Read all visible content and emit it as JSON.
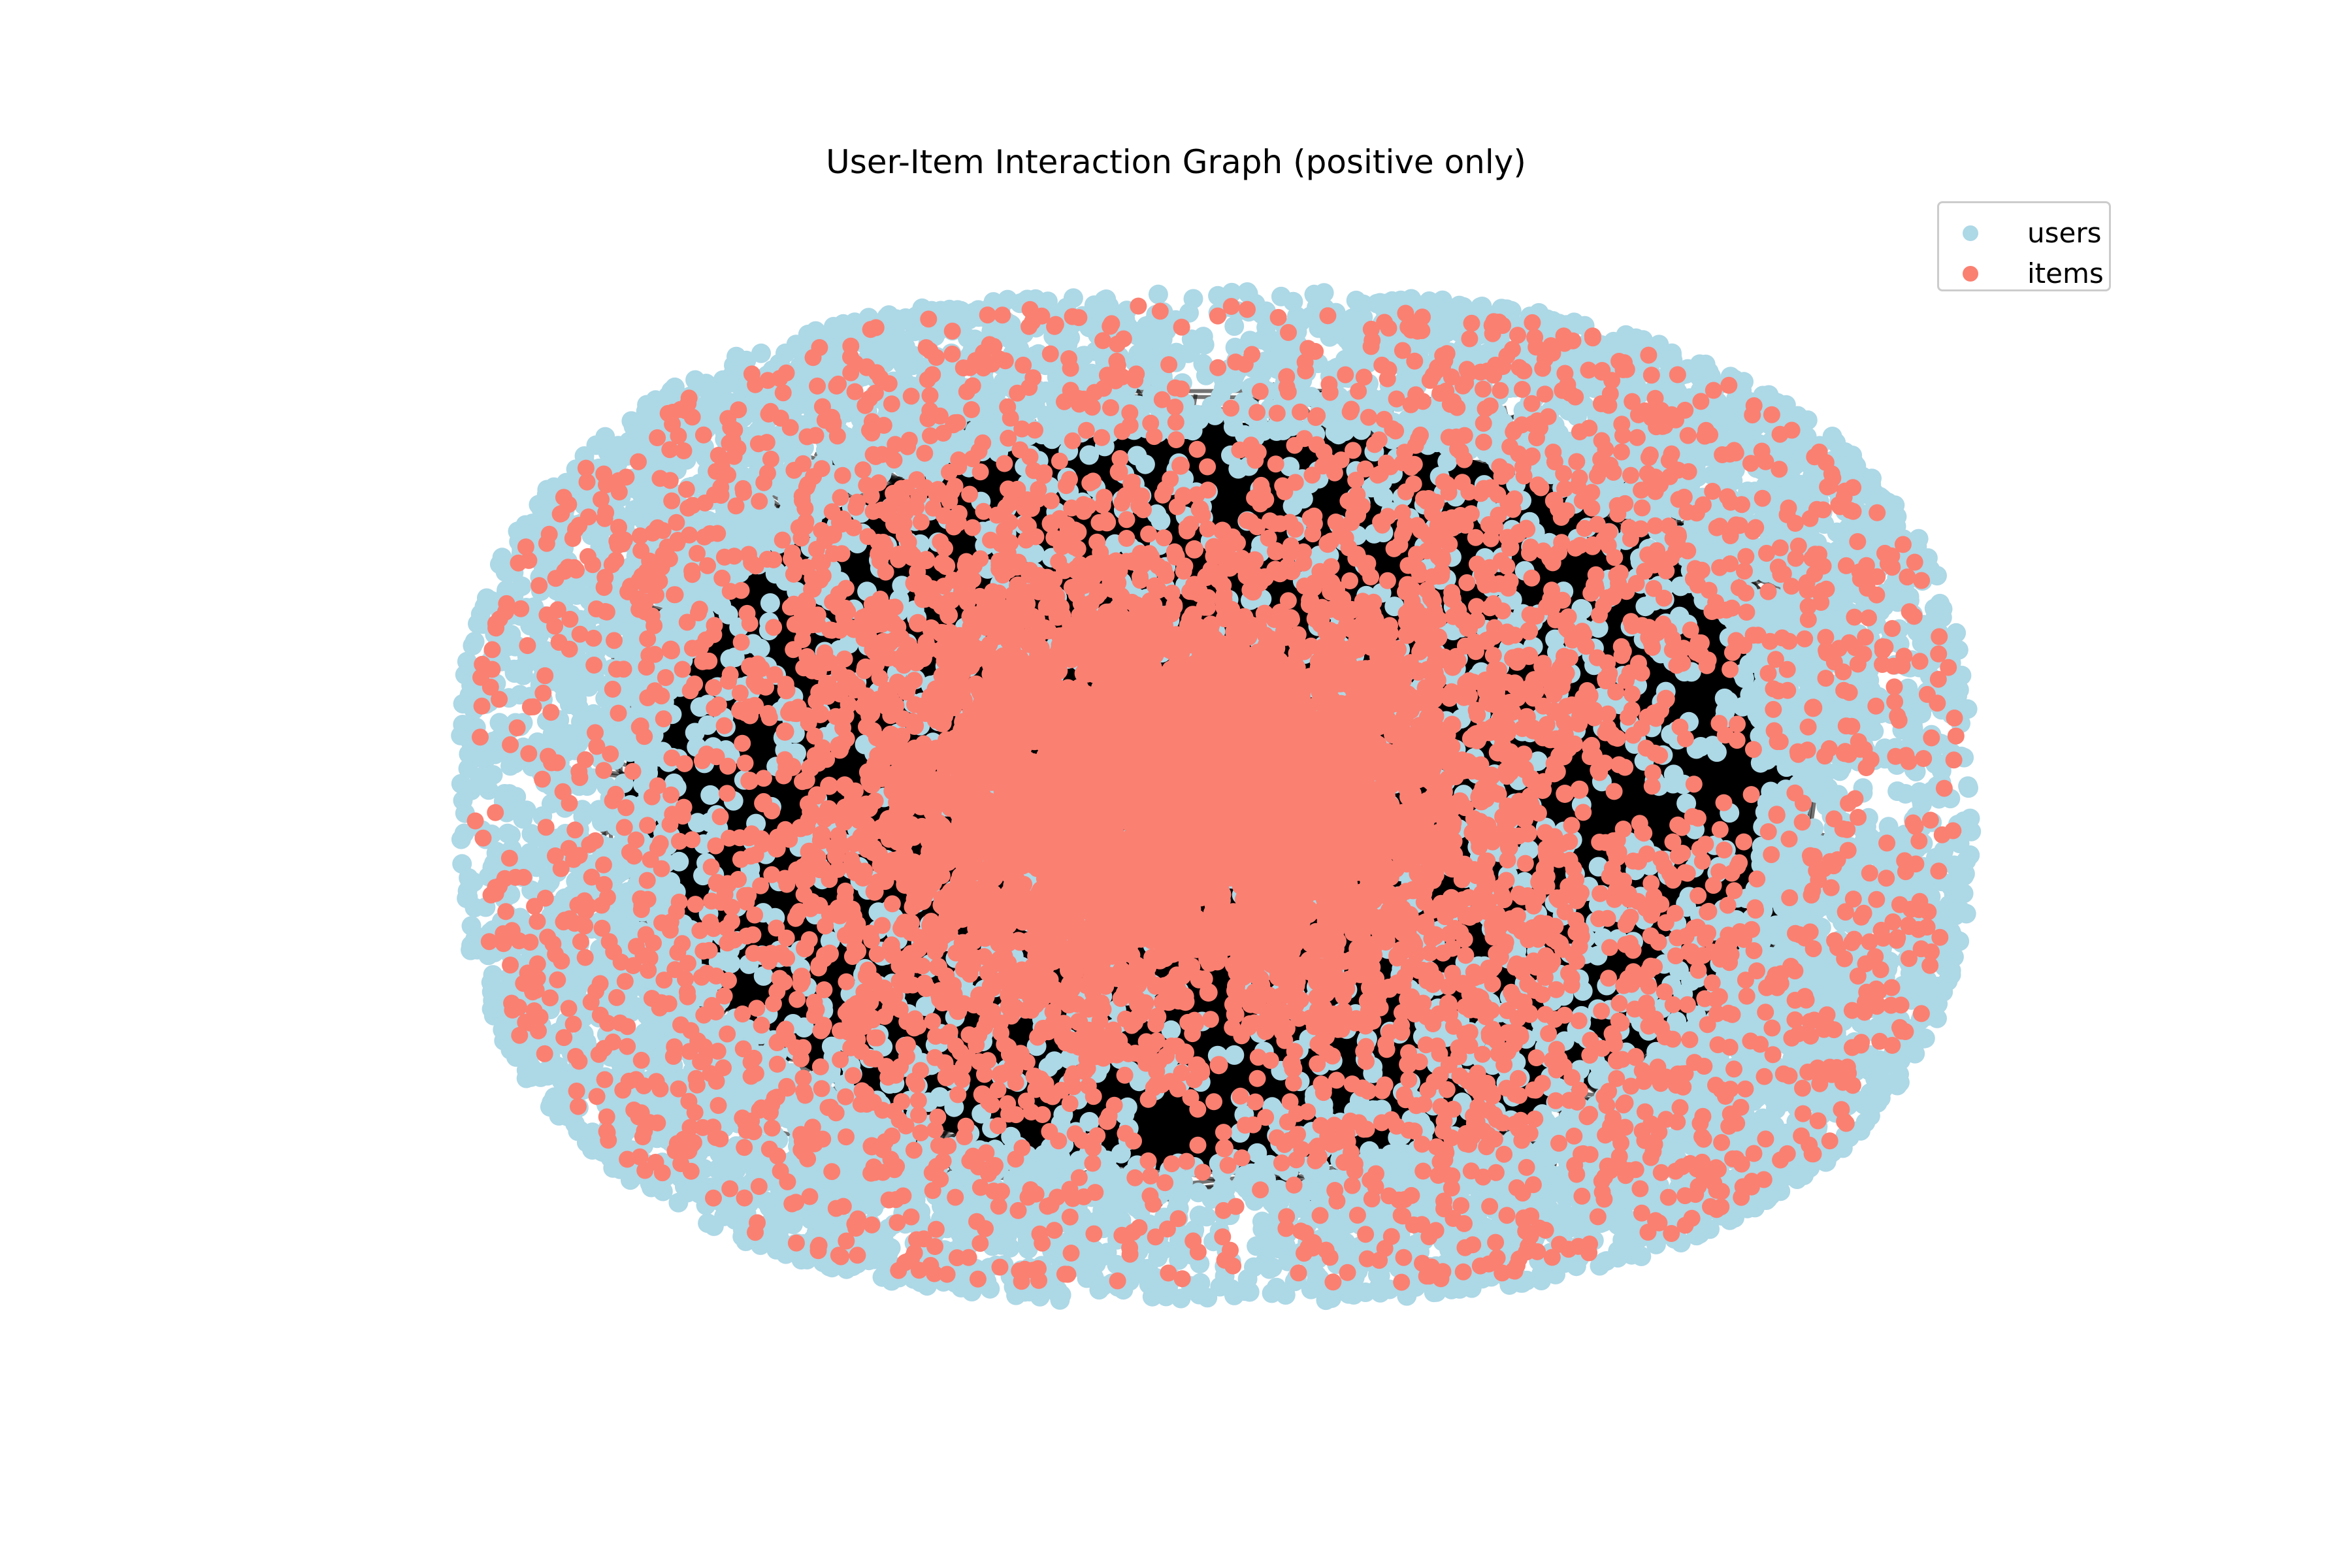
{
  "title": "User-Item Interaction Graph (positive only)",
  "legend": {
    "users_label": "users",
    "items_label": "items"
  },
  "colors": {
    "users": "#add8e6",
    "items": "#fa8072",
    "edges": "#000000",
    "legend_border": "#cccccc",
    "background": "#ffffff"
  },
  "graph": {
    "layout": "force-directed",
    "node_types": [
      "users",
      "items"
    ],
    "edge_type": "positive interactions"
  }
}
